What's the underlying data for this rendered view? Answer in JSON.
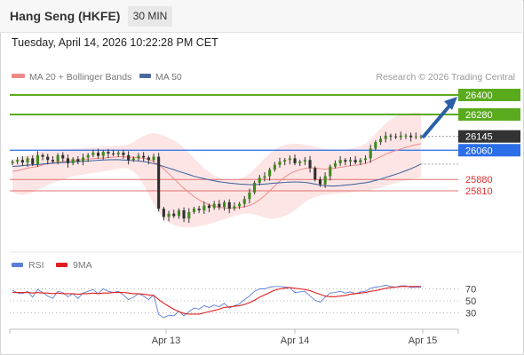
{
  "header": {
    "title": "Hang Seng (HKFE)",
    "timeframe": "30 MIN"
  },
  "datetime": "Tuesday, April 14, 2026 10:22:28 PM CET",
  "legend": {
    "bb_label": "MA 20 + Bollinger Bands",
    "ma50_label": "MA 50",
    "credit": "Research © 2026 Trading Central",
    "bb_color": "#f08a8a",
    "ma50_color": "#4a6aa0"
  },
  "rsi_legend": {
    "rsi_label": "RSI",
    "ma_label": "9MA",
    "rsi_color": "#5b7fd6",
    "ma_color": "#e02020"
  },
  "chart_data": [
    {
      "type": "candlestick",
      "ylim": [
        25510,
        26460
      ],
      "x_ticks": [
        "Apr 13",
        "Apr 14",
        "Apr 15"
      ],
      "levels": [
        {
          "value": 26400,
          "label": "26400",
          "kind": "resistance",
          "color": "#5aaa1e"
        },
        {
          "value": 26280,
          "label": "26280",
          "kind": "resistance",
          "color": "#5aaa1e"
        },
        {
          "value": 26145,
          "label": "26145",
          "kind": "last",
          "color": "#333333"
        },
        {
          "value": 26060,
          "label": "26060",
          "kind": "pivot",
          "color": "#2b6ee8"
        },
        {
          "value": 25880,
          "label": "25880",
          "kind": "support",
          "color": "#e07070"
        },
        {
          "value": 25810,
          "label": "25810",
          "kind": "support",
          "color": "#e07070"
        }
      ],
      "close_series": [
        25990,
        26000,
        25985,
        26010,
        25975,
        26030,
        26020,
        26000,
        25990,
        26030,
        26010,
        25980,
        26005,
        25990,
        26015,
        26030,
        26045,
        26025,
        26050,
        26040,
        26035,
        26045,
        26030,
        26000,
        26010,
        26025,
        26015,
        26000,
        26020,
        25700,
        25650,
        25670,
        25655,
        25690,
        25640,
        25680,
        25700,
        25690,
        25720,
        25705,
        25730,
        25710,
        25740,
        25700,
        25715,
        25730,
        25760,
        25800,
        25860,
        25890,
        25900,
        25940,
        25970,
        25990,
        26000,
        26010,
        25980,
        25990,
        26000,
        25950,
        25880,
        25850,
        25900,
        25960,
        25980,
        26000,
        25990,
        26000,
        25985,
        26000,
        26010,
        26070,
        26110,
        26130,
        26150,
        26145,
        26140,
        26150,
        26150,
        26140,
        26145,
        26145
      ],
      "ma20": [
        25930,
        25935,
        25942,
        25950,
        25955,
        25960,
        25970,
        25976,
        25982,
        25986,
        25990,
        25994,
        25998,
        26000,
        26004,
        26006,
        26008,
        26010,
        26012,
        26015,
        26018,
        26020,
        26020,
        26018,
        26016,
        26014,
        26010,
        26004,
        25990,
        25970,
        25945,
        25915,
        25885,
        25855,
        25825,
        25800,
        25775,
        25755,
        25738,
        25725,
        25715,
        25708,
        25705,
        25703,
        25705,
        25708,
        25712,
        25720,
        25735,
        25755,
        25780,
        25810,
        25840,
        25870,
        25895,
        25915,
        25930,
        25940,
        25948,
        25952,
        25950,
        25946,
        25944,
        25946,
        25950,
        25955,
        25960,
        25965,
        25968,
        25972,
        25978,
        25990,
        26005,
        26020,
        26035,
        26048,
        26058,
        26068,
        26078,
        26086,
        26094,
        26100
      ],
      "ma50": [
        25960,
        25962,
        25965,
        25968,
        25970,
        25972,
        25975,
        25978,
        25980,
        25982,
        25984,
        25986,
        25988,
        25990,
        25992,
        25994,
        25996,
        25998,
        26000,
        26001,
        26002,
        26002,
        26000,
        25998,
        25996,
        25993,
        25990,
        25985,
        25978,
        25970,
        25960,
        25950,
        25940,
        25930,
        25920,
        25910,
        25900,
        25892,
        25885,
        25878,
        25872,
        25866,
        25862,
        25858,
        25855,
        25852,
        25850,
        25848,
        25848,
        25850,
        25852,
        25855,
        25858,
        25860,
        25862,
        25864,
        25865,
        25864,
        25862,
        25858,
        25852,
        25846,
        25842,
        25840,
        25840,
        25842,
        25845,
        25848,
        25852,
        25856,
        25860,
        25866,
        25874,
        25882,
        25892,
        25902,
        25912,
        25922,
        25934,
        25946,
        25960,
        25975
      ],
      "bb_upper": [
        26000,
        26010,
        26020,
        26030,
        26040,
        26048,
        26055,
        26060,
        26062,
        26064,
        26066,
        26068,
        26070,
        26072,
        26074,
        26076,
        26078,
        26080,
        26082,
        26084,
        26085,
        26086,
        26088,
        26095,
        26110,
        26130,
        26148,
        26160,
        26165,
        26160,
        26150,
        26135,
        26120,
        26100,
        26075,
        26045,
        26010,
        25980,
        25950,
        25925,
        25905,
        25890,
        25880,
        25876,
        25878,
        25885,
        25895,
        25915,
        25945,
        25980,
        26010,
        26040,
        26065,
        26082,
        26092,
        26098,
        26100,
        26098,
        26094,
        26088,
        26082,
        26074,
        26068,
        26064,
        26062,
        26062,
        26065,
        26070,
        26076,
        26085,
        26100,
        26125,
        26160,
        26195,
        26225,
        26250,
        26268,
        26278,
        26285,
        26290,
        26292,
        26290
      ],
      "bb_lower": [
        25800,
        25790,
        25785,
        25790,
        25800,
        25815,
        25830,
        25845,
        25860,
        25870,
        25880,
        25890,
        25900,
        25905,
        25910,
        25915,
        25920,
        25925,
        25930,
        25935,
        25940,
        25945,
        25950,
        25945,
        25930,
        25895,
        25845,
        25790,
        25730,
        25680,
        25640,
        25615,
        25600,
        25590,
        25585,
        25585,
        25588,
        25592,
        25598,
        25606,
        25615,
        25625,
        25635,
        25645,
        25655,
        25665,
        25670,
        25670,
        25665,
        25655,
        25645,
        25640,
        25640,
        25645,
        25655,
        25670,
        25690,
        25715,
        25740,
        25760,
        25772,
        25780,
        25786,
        25790,
        25793,
        25795,
        25798,
        25800,
        25805,
        25808,
        25810,
        25815,
        25822,
        25830,
        25840,
        25850,
        25858,
        25866,
        25874,
        25880,
        25886,
        25890
      ],
      "forecast_arrow": {
        "from": 26145,
        "to": 26400
      }
    },
    {
      "type": "line",
      "ylim": [
        10,
        90
      ],
      "y_ticks": [
        70,
        50,
        30
      ],
      "overbought": 70,
      "oversold": 30,
      "series": [
        {
          "name": "RSI",
          "values": [
            68,
            63,
            62,
            66,
            56,
            69,
            64,
            58,
            54,
            66,
            64,
            57,
            62,
            54,
            63,
            66,
            69,
            62,
            70,
            66,
            64,
            66,
            60,
            52,
            56,
            62,
            58,
            52,
            60,
            27,
            22,
            26,
            25,
            33,
            25,
            32,
            38,
            36,
            42,
            39,
            43,
            40,
            46,
            38,
            42,
            45,
            52,
            58,
            66,
            70,
            70,
            73,
            74,
            74,
            73,
            72,
            64,
            65,
            66,
            58,
            51,
            48,
            56,
            63,
            64,
            66,
            63,
            65,
            62,
            65,
            66,
            71,
            73,
            74,
            76,
            74,
            73,
            75,
            75,
            72,
            73,
            73
          ]
        },
        {
          "name": "9MA",
          "values": [
            64,
            64,
            64,
            64,
            63,
            64,
            63,
            63,
            62,
            63,
            62,
            62,
            62,
            61,
            62,
            62,
            63,
            62,
            63,
            63,
            64,
            64,
            64,
            63,
            62,
            62,
            61,
            60,
            59,
            52,
            46,
            41,
            36,
            32,
            29,
            28,
            28,
            28,
            30,
            32,
            34,
            36,
            39,
            40,
            41,
            42,
            44,
            47,
            51,
            56,
            60,
            64,
            68,
            70,
            71,
            72,
            71,
            70,
            69,
            67,
            64,
            61,
            58,
            57,
            57,
            58,
            59,
            61,
            62,
            63,
            64,
            66,
            67,
            69,
            71,
            72,
            73,
            74,
            74,
            74,
            74,
            74
          ]
        }
      ]
    }
  ]
}
